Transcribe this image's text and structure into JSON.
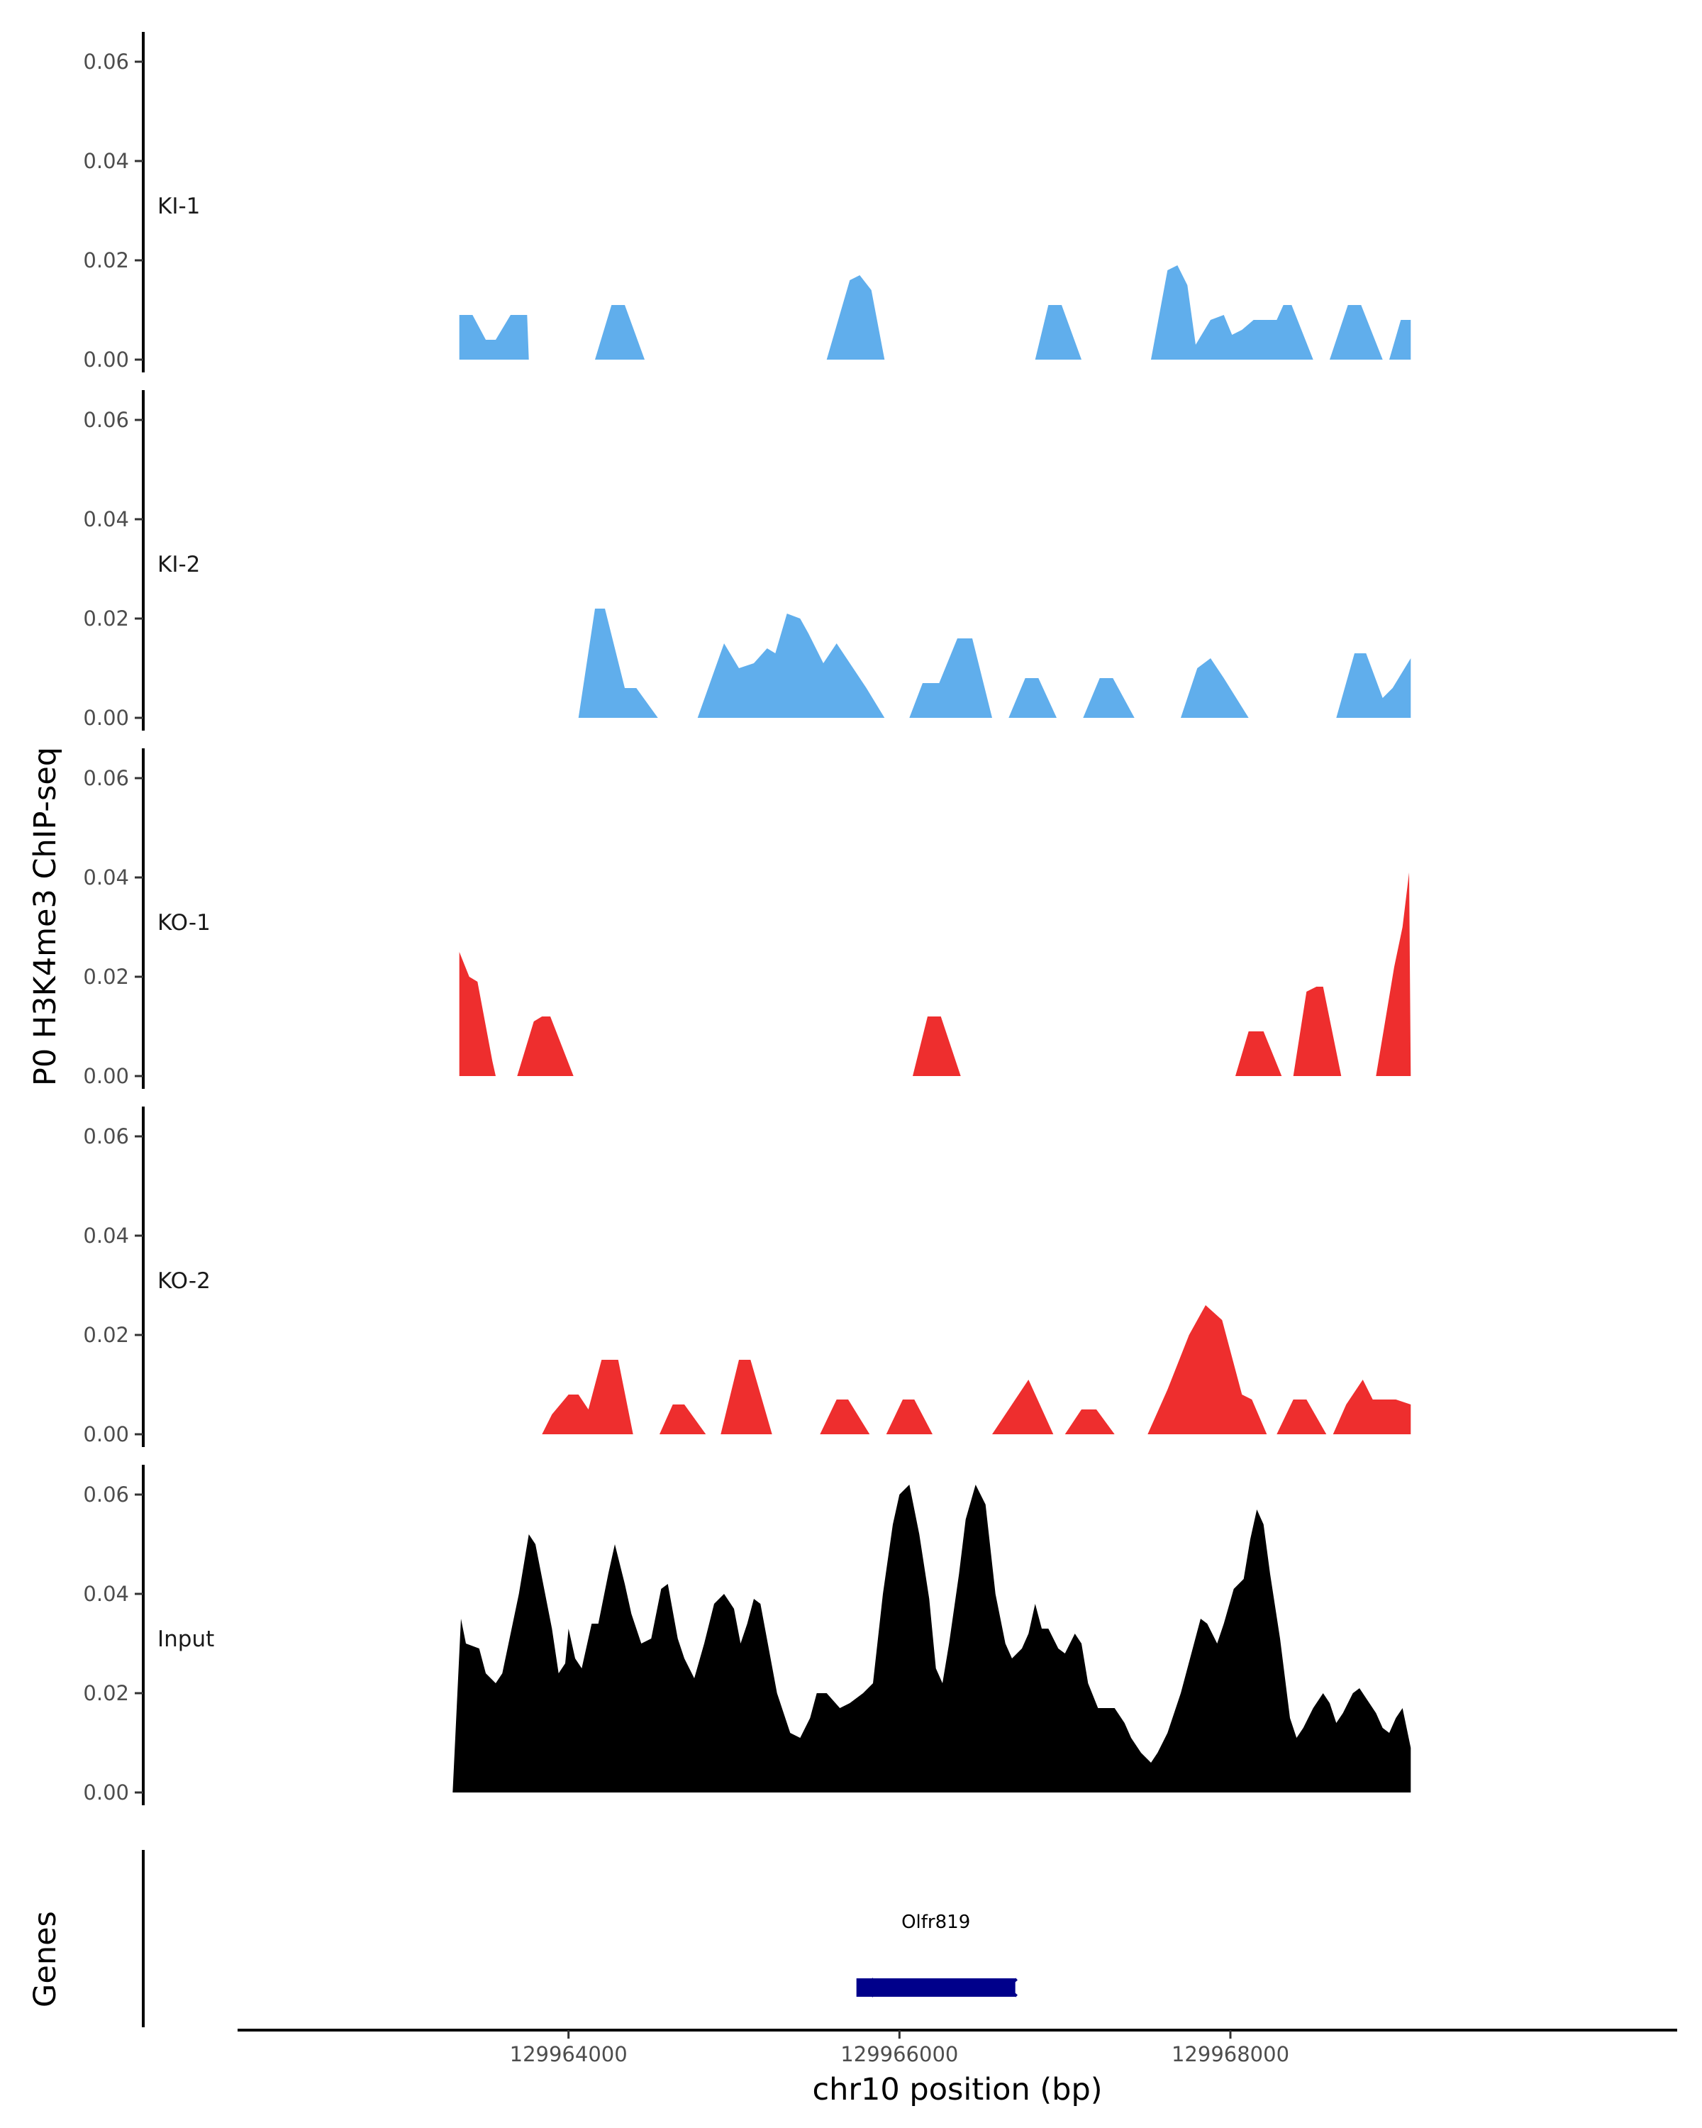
{
  "chart_data": {
    "type": "area",
    "ylabel": "P0 H3K4me3 ChIP-seq",
    "xlabel": "chr10 position (bp)",
    "genes_label": "Genes",
    "xlim": [
      129962000,
      129970700
    ],
    "ylim": [
      0,
      0.065
    ],
    "y_ticks": [
      "0.00",
      "0.02",
      "0.04",
      "0.06"
    ],
    "x_ticks": [
      {
        "value": 129964000,
        "label": "129964000"
      },
      {
        "value": 129966000,
        "label": "129966000"
      },
      {
        "value": 129968000,
        "label": "129968000"
      }
    ],
    "colors": {
      "KI": "#60AEEC",
      "KO": "#EE2E2E",
      "Input": "#000000",
      "gene": "#00008B"
    },
    "tracks": [
      {
        "name": "KI-1",
        "label": "KI-1",
        "color": "#60AEEC",
        "points": [
          [
            129963340,
            0
          ],
          [
            129963340,
            0.009
          ],
          [
            129963420,
            0.009
          ],
          [
            129963500,
            0.004
          ],
          [
            129963560,
            0.004
          ],
          [
            129963650,
            0.009
          ],
          [
            129963750,
            0.009
          ],
          [
            129963760,
            0
          ],
          [
            129964160,
            0
          ],
          [
            129964260,
            0.011
          ],
          [
            129964340,
            0.011
          ],
          [
            129964460,
            0
          ],
          [
            129965560,
            0
          ],
          [
            129965700,
            0.016
          ],
          [
            129965760,
            0.017
          ],
          [
            129965830,
            0.014
          ],
          [
            129965910,
            0
          ],
          [
            129966820,
            0
          ],
          [
            129966900,
            0.011
          ],
          [
            129966980,
            0.011
          ],
          [
            129967100,
            0
          ],
          [
            129967520,
            0
          ],
          [
            129967620,
            0.018
          ],
          [
            129967680,
            0.019
          ],
          [
            129967740,
            0.015
          ],
          [
            129967790,
            0.003
          ],
          [
            129967880,
            0.008
          ],
          [
            129967960,
            0.009
          ],
          [
            129968010,
            0.005
          ],
          [
            129968070,
            0.006
          ],
          [
            129968140,
            0.008
          ],
          [
            129968210,
            0.008
          ],
          [
            129968280,
            0.008
          ],
          [
            129968320,
            0.011
          ],
          [
            129968370,
            0.011
          ],
          [
            129968500,
            0
          ],
          [
            129968600,
            0
          ],
          [
            129968710,
            0.011
          ],
          [
            129968790,
            0.011
          ],
          [
            129968920,
            0
          ],
          [
            129968960,
            0
          ],
          [
            129969030,
            0.008
          ],
          [
            129969090,
            0.008
          ],
          [
            129969090,
            0
          ]
        ]
      },
      {
        "name": "KI-2",
        "label": "KI-2",
        "color": "#60AEEC",
        "points": [
          [
            129964060,
            0
          ],
          [
            129964160,
            0.022
          ],
          [
            129964220,
            0.022
          ],
          [
            129964340,
            0.006
          ],
          [
            129964410,
            0.006
          ],
          [
            129964540,
            0
          ],
          [
            129964780,
            0
          ],
          [
            129964940,
            0.015
          ],
          [
            129965030,
            0.01
          ],
          [
            129965120,
            0.011
          ],
          [
            129965200,
            0.014
          ],
          [
            129965250,
            0.013
          ],
          [
            129965320,
            0.021
          ],
          [
            129965400,
            0.02
          ],
          [
            129965450,
            0.017
          ],
          [
            129965540,
            0.011
          ],
          [
            129965620,
            0.015
          ],
          [
            129965800,
            0.006
          ],
          [
            129965910,
            0
          ],
          [
            129966060,
            0
          ],
          [
            129966140,
            0.007
          ],
          [
            129966240,
            0.007
          ],
          [
            129966350,
            0.016
          ],
          [
            129966440,
            0.016
          ],
          [
            129966560,
            0
          ],
          [
            129966660,
            0
          ],
          [
            129966760,
            0.008
          ],
          [
            129966840,
            0.008
          ],
          [
            129966950,
            0
          ],
          [
            129967110,
            0
          ],
          [
            129967210,
            0.008
          ],
          [
            129967290,
            0.008
          ],
          [
            129967420,
            0
          ],
          [
            129967700,
            0
          ],
          [
            129967800,
            0.01
          ],
          [
            129967880,
            0.012
          ],
          [
            129967960,
            0.008
          ],
          [
            129968110,
            0
          ],
          [
            129968640,
            0
          ],
          [
            129968750,
            0.013
          ],
          [
            129968820,
            0.013
          ],
          [
            129968920,
            0.004
          ],
          [
            129968980,
            0.006
          ],
          [
            129969090,
            0.012
          ],
          [
            129969090,
            0
          ]
        ]
      },
      {
        "name": "KO-1",
        "label": "KO-1",
        "color": "#EE2E2E",
        "points": [
          [
            129963340,
            0
          ],
          [
            129963340,
            0.025
          ],
          [
            129963400,
            0.02
          ],
          [
            129963450,
            0.019
          ],
          [
            129963540,
            0.003
          ],
          [
            129963560,
            0
          ],
          [
            129963690,
            0
          ],
          [
            129963790,
            0.011
          ],
          [
            129963840,
            0.012
          ],
          [
            129963890,
            0.012
          ],
          [
            129964030,
            0
          ],
          [
            129966080,
            0
          ],
          [
            129966170,
            0.012
          ],
          [
            129966250,
            0.012
          ],
          [
            129966370,
            0
          ],
          [
            129968030,
            0
          ],
          [
            129968110,
            0.009
          ],
          [
            129968200,
            0.009
          ],
          [
            129968310,
            0
          ],
          [
            129968380,
            0
          ],
          [
            129968460,
            0.017
          ],
          [
            129968520,
            0.018
          ],
          [
            129968560,
            0.018
          ],
          [
            129968670,
            0
          ],
          [
            129968880,
            0
          ],
          [
            129968930,
            0.01
          ],
          [
            129968990,
            0.022
          ],
          [
            129969040,
            0.03
          ],
          [
            129969080,
            0.041
          ],
          [
            129969090,
            0
          ]
        ]
      },
      {
        "name": "KO-2",
        "label": "KO-2",
        "color": "#EE2E2E",
        "points": [
          [
            129963840,
            0
          ],
          [
            129963900,
            0.004
          ],
          [
            129964000,
            0.008
          ],
          [
            129964060,
            0.008
          ],
          [
            129964120,
            0.005
          ],
          [
            129964200,
            0.015
          ],
          [
            129964300,
            0.015
          ],
          [
            129964390,
            0
          ],
          [
            129964550,
            0
          ],
          [
            129964630,
            0.006
          ],
          [
            129964700,
            0.006
          ],
          [
            129964830,
            0
          ],
          [
            129964920,
            0
          ],
          [
            129965030,
            0.015
          ],
          [
            129965100,
            0.015
          ],
          [
            129965230,
            0
          ],
          [
            129965520,
            0
          ],
          [
            129965620,
            0.007
          ],
          [
            129965690,
            0.007
          ],
          [
            129965820,
            0
          ],
          [
            129965920,
            0
          ],
          [
            129966020,
            0.007
          ],
          [
            129966090,
            0.007
          ],
          [
            129966200,
            0
          ],
          [
            129966560,
            0
          ],
          [
            129966780,
            0.011
          ],
          [
            129966930,
            0
          ],
          [
            129967000,
            0
          ],
          [
            129967100,
            0.005
          ],
          [
            129967190,
            0.005
          ],
          [
            129967300,
            0
          ],
          [
            129967500,
            0
          ],
          [
            129967620,
            0.009
          ],
          [
            129967750,
            0.02
          ],
          [
            129967850,
            0.026
          ],
          [
            129967950,
            0.023
          ],
          [
            129968070,
            0.008
          ],
          [
            129968130,
            0.007
          ],
          [
            129968220,
            0
          ],
          [
            129968280,
            0
          ],
          [
            129968380,
            0.007
          ],
          [
            129968460,
            0.007
          ],
          [
            129968580,
            0
          ],
          [
            129968620,
            0
          ],
          [
            129968700,
            0.006
          ],
          [
            129968800,
            0.011
          ],
          [
            129968860,
            0.007
          ],
          [
            129969000,
            0.007
          ],
          [
            129969090,
            0.006
          ],
          [
            129969090,
            0
          ]
        ]
      },
      {
        "name": "Input",
        "label": "Input",
        "color": "#000000",
        "points": [
          [
            129963300,
            0
          ],
          [
            129963350,
            0.035
          ],
          [
            129963380,
            0.03
          ],
          [
            129963460,
            0.029
          ],
          [
            129963500,
            0.024
          ],
          [
            129963560,
            0.022
          ],
          [
            129963600,
            0.024
          ],
          [
            129963700,
            0.04
          ],
          [
            129963760,
            0.052
          ],
          [
            129963800,
            0.05
          ],
          [
            129963900,
            0.033
          ],
          [
            129963940,
            0.024
          ],
          [
            129963980,
            0.026
          ],
          [
            129964000,
            0.033
          ],
          [
            129964040,
            0.027
          ],
          [
            129964080,
            0.025
          ],
          [
            129964140,
            0.034
          ],
          [
            129964180,
            0.034
          ],
          [
            129964240,
            0.044
          ],
          [
            129964280,
            0.05
          ],
          [
            129964340,
            0.042
          ],
          [
            129964380,
            0.036
          ],
          [
            129964440,
            0.03
          ],
          [
            129964500,
            0.031
          ],
          [
            129964560,
            0.041
          ],
          [
            129964600,
            0.042
          ],
          [
            129964660,
            0.031
          ],
          [
            129964700,
            0.027
          ],
          [
            129964760,
            0.023
          ],
          [
            129964820,
            0.03
          ],
          [
            129964880,
            0.038
          ],
          [
            129964940,
            0.04
          ],
          [
            129965000,
            0.037
          ],
          [
            129965040,
            0.03
          ],
          [
            129965080,
            0.034
          ],
          [
            129965120,
            0.039
          ],
          [
            129965160,
            0.038
          ],
          [
            129965260,
            0.02
          ],
          [
            129965340,
            0.012
          ],
          [
            129965400,
            0.011
          ],
          [
            129965460,
            0.015
          ],
          [
            129965500,
            0.02
          ],
          [
            129965560,
            0.02
          ],
          [
            129965640,
            0.017
          ],
          [
            129965700,
            0.018
          ],
          [
            129965780,
            0.02
          ],
          [
            129965840,
            0.022
          ],
          [
            129965900,
            0.04
          ],
          [
            129965960,
            0.054
          ],
          [
            129966000,
            0.06
          ],
          [
            129966060,
            0.062
          ],
          [
            129966120,
            0.052
          ],
          [
            129966180,
            0.039
          ],
          [
            129966220,
            0.025
          ],
          [
            129966260,
            0.022
          ],
          [
            129966300,
            0.03
          ],
          [
            129966360,
            0.044
          ],
          [
            129966400,
            0.055
          ],
          [
            129966460,
            0.062
          ],
          [
            129966520,
            0.058
          ],
          [
            129966580,
            0.04
          ],
          [
            129966640,
            0.03
          ],
          [
            129966680,
            0.027
          ],
          [
            129966740,
            0.029
          ],
          [
            129966780,
            0.032
          ],
          [
            129966820,
            0.038
          ],
          [
            129966860,
            0.033
          ],
          [
            129966900,
            0.033
          ],
          [
            129966960,
            0.029
          ],
          [
            129967000,
            0.028
          ],
          [
            129967060,
            0.032
          ],
          [
            129967100,
            0.03
          ],
          [
            129967140,
            0.022
          ],
          [
            129967200,
            0.017
          ],
          [
            129967300,
            0.017
          ],
          [
            129967360,
            0.014
          ],
          [
            129967400,
            0.011
          ],
          [
            129967460,
            0.008
          ],
          [
            129967520,
            0.006
          ],
          [
            129967560,
            0.008
          ],
          [
            129967620,
            0.012
          ],
          [
            129967700,
            0.02
          ],
          [
            129967780,
            0.03
          ],
          [
            129967820,
            0.035
          ],
          [
            129967860,
            0.034
          ],
          [
            129967920,
            0.03
          ],
          [
            129967960,
            0.034
          ],
          [
            129968020,
            0.041
          ],
          [
            129968080,
            0.043
          ],
          [
            129968120,
            0.051
          ],
          [
            129968160,
            0.057
          ],
          [
            129968200,
            0.054
          ],
          [
            129968240,
            0.044
          ],
          [
            129968300,
            0.031
          ],
          [
            129968360,
            0.015
          ],
          [
            129968400,
            0.011
          ],
          [
            129968440,
            0.013
          ],
          [
            129968500,
            0.017
          ],
          [
            129968560,
            0.02
          ],
          [
            129968600,
            0.018
          ],
          [
            129968640,
            0.014
          ],
          [
            129968680,
            0.016
          ],
          [
            129968740,
            0.02
          ],
          [
            129968780,
            0.021
          ],
          [
            129968820,
            0.019
          ],
          [
            129968880,
            0.016
          ],
          [
            129968920,
            0.013
          ],
          [
            129968960,
            0.012
          ],
          [
            129969000,
            0.015
          ],
          [
            129969040,
            0.017
          ],
          [
            129969090,
            0.009
          ],
          [
            129969090,
            0
          ]
        ]
      }
    ],
    "gene": {
      "name": "Olfr819",
      "start": 129965740,
      "end": 129966700,
      "strand": "-"
    }
  }
}
